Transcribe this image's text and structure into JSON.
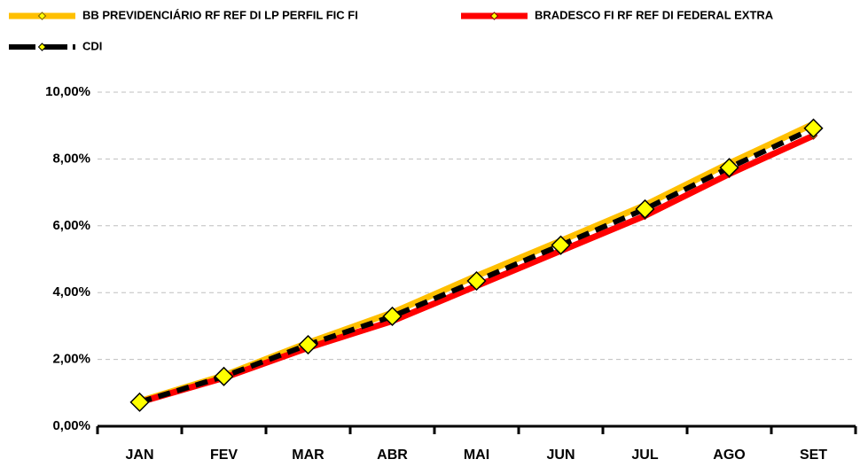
{
  "chart_data": {
    "type": "line",
    "categories": [
      "JAN",
      "FEV",
      "MAR",
      "ABR",
      "MAI",
      "JUN",
      "JUL",
      "AGO",
      "SET"
    ],
    "series": [
      {
        "name": "BB PREVIDENCIÁRIO RF REF DI LP PERFIL FIC FI",
        "color": "#ffc000",
        "values": [
          0.75,
          1.52,
          2.5,
          3.4,
          4.5,
          5.55,
          6.62,
          7.87,
          9.05
        ]
      },
      {
        "name": "BRADESCO FI RF REF DI FEDERAL EXTRA",
        "color": "#ff0000",
        "values": [
          0.72,
          1.45,
          2.35,
          3.15,
          4.2,
          5.25,
          6.3,
          7.55,
          8.7
        ]
      },
      {
        "name": "CDI",
        "color": "#000000",
        "values": [
          0.72,
          1.49,
          2.44,
          3.29,
          4.35,
          5.42,
          6.5,
          7.74,
          8.92
        ]
      }
    ],
    "marker_color": "#ffff00",
    "ylim": [
      0,
      10
    ],
    "yticks": [
      {
        "value": 0,
        "label": "0,00%"
      },
      {
        "value": 2,
        "label": "2,00%"
      },
      {
        "value": 4,
        "label": "4,00%"
      },
      {
        "value": 6,
        "label": "6,00%"
      },
      {
        "value": 8,
        "label": "8,00%"
      },
      {
        "value": 10,
        "label": "10,00%"
      }
    ],
    "grid": true
  }
}
